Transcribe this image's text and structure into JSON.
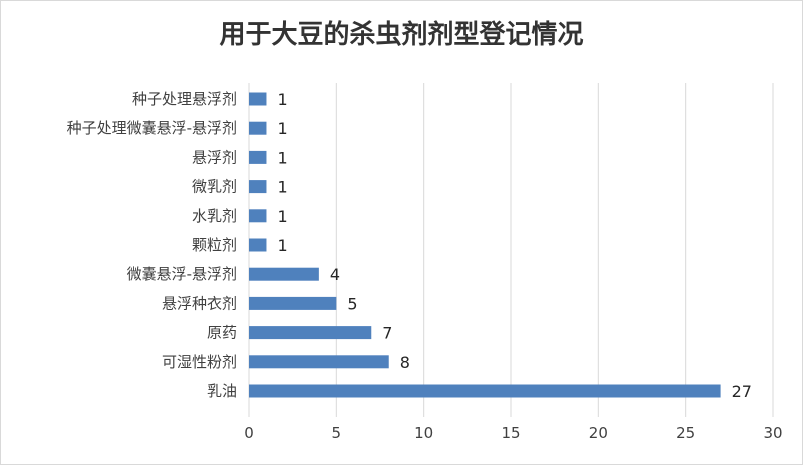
{
  "chart_data": {
    "type": "bar",
    "orientation": "horizontal",
    "title": "用于大豆的杀虫剂剂型登记情况",
    "categories": [
      "种子处理悬浮剂",
      "种子处理微囊悬浮-悬浮剂",
      "悬浮剂",
      "微乳剂",
      "水乳剂",
      "颗粒剂",
      "微囊悬浮-悬浮剂",
      "悬浮种衣剂",
      "原药",
      "可湿性粉剂",
      "乳油"
    ],
    "values": [
      1,
      1,
      1,
      1,
      1,
      1,
      4,
      5,
      7,
      8,
      27
    ],
    "xlim": [
      0,
      30
    ],
    "xticks": [
      0,
      5,
      10,
      15,
      20,
      25,
      30
    ],
    "grid": true,
    "bar_color": "#4f81bd"
  }
}
